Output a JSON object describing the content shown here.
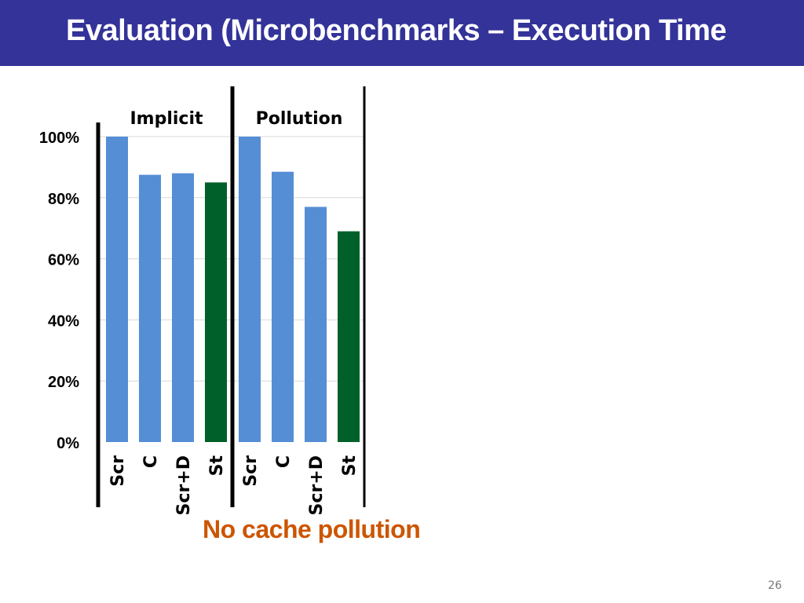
{
  "slide": {
    "title": "Evaluation (Microbenchmarks – Execution Time",
    "caption": "No cache pollution",
    "page_number": "26"
  },
  "colors": {
    "header_bg": "#333399",
    "bar_default": "#558ed5",
    "bar_highlight": "#006029",
    "caption": "#cc5500"
  },
  "chart_data": {
    "type": "bar",
    "yticks": [
      "0%",
      "20%",
      "40%",
      "60%",
      "80%",
      "100%"
    ],
    "ylim": [
      0,
      100
    ],
    "grid": true,
    "groups": [
      {
        "name": "Implicit",
        "categories": [
          "Scr",
          "C",
          "Scr+D",
          "St"
        ],
        "values": [
          100,
          87.5,
          88,
          85
        ],
        "highlight": [
          false,
          false,
          false,
          true
        ]
      },
      {
        "name": "Pollution",
        "categories": [
          "Scr",
          "C",
          "Scr+D",
          "St"
        ],
        "values": [
          100,
          88.5,
          77,
          69
        ],
        "highlight": [
          false,
          false,
          false,
          true
        ]
      }
    ]
  }
}
